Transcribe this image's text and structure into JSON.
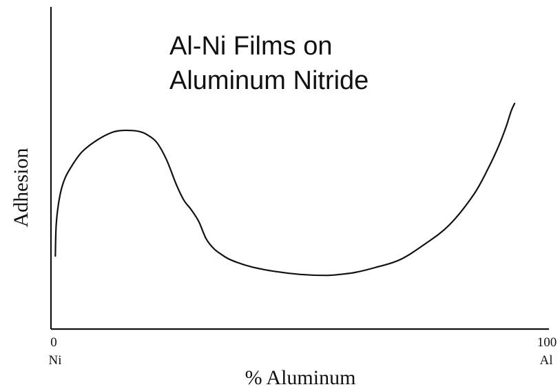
{
  "chart_data": {
    "type": "line",
    "title_lines": [
      "Al-Ni Films on",
      "Aluminum Nitride"
    ],
    "xlabel": "% Aluminum",
    "ylabel": "Adhesion",
    "xlim": [
      0,
      100
    ],
    "ylim": [
      0,
      1
    ],
    "x_ticks": [
      {
        "value": "0",
        "sublabel": "Ni"
      },
      {
        "value": "100",
        "sublabel": "Al"
      }
    ],
    "grid": false,
    "legend": "none",
    "line_color": "#111111",
    "series": [
      {
        "x": [
          0.6,
          0.8,
          1.5,
          2.5,
          4,
          6,
          9,
          12,
          14,
          16,
          17.5,
          19,
          21,
          23,
          25,
          26.5,
          28,
          29.5,
          31,
          32.5,
          34,
          36,
          40,
          45,
          50,
          55,
          58,
          61,
          65,
          70,
          75,
          80,
          85,
          88,
          90,
          91.5,
          92.5,
          93.2
        ],
        "y": [
          0.21,
          0.38,
          0.52,
          0.61,
          0.68,
          0.75,
          0.81,
          0.85,
          0.86,
          0.86,
          0.855,
          0.84,
          0.8,
          0.71,
          0.58,
          0.5,
          0.45,
          0.39,
          0.3,
          0.25,
          0.22,
          0.19,
          0.155,
          0.13,
          0.115,
          0.11,
          0.115,
          0.125,
          0.15,
          0.19,
          0.27,
          0.37,
          0.53,
          0.67,
          0.78,
          0.88,
          0.96,
          1.0
        ]
      }
    ]
  }
}
